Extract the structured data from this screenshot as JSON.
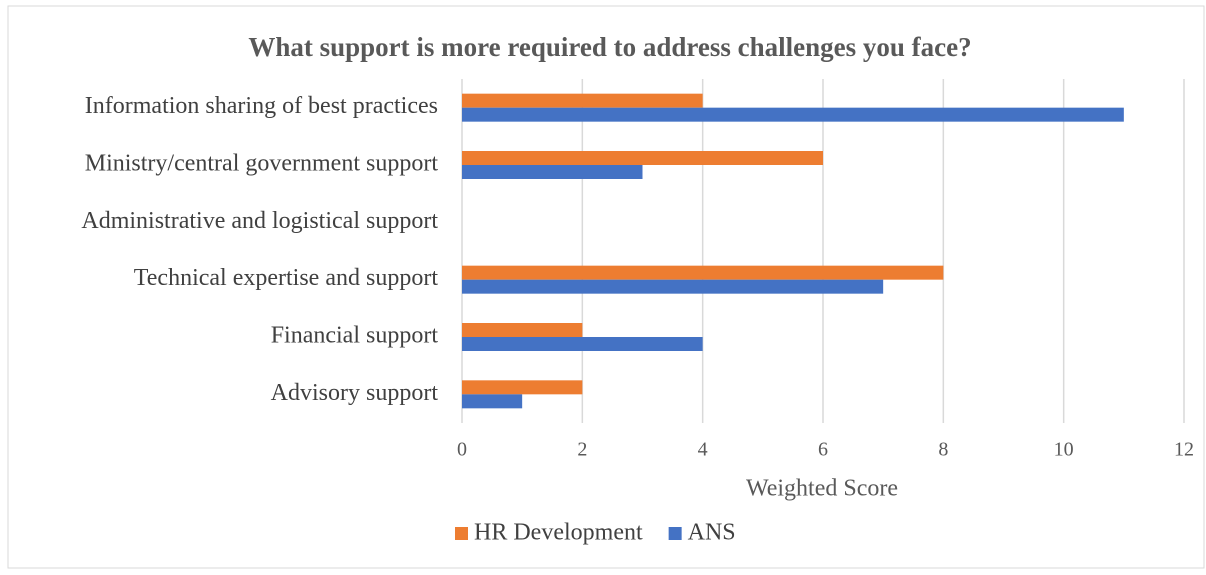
{
  "chart_data": {
    "type": "hbar",
    "title": "What support is more required to address challenges you face?",
    "categories": [
      "Information sharing of best practices",
      "Ministry/central government support",
      "Administrative and logistical support",
      "Technical expertise and support",
      "Financial support",
      "Advisory support"
    ],
    "series": [
      {
        "name": "HR Development",
        "color": "#ed7d31",
        "values": [
          4,
          6,
          0,
          8,
          2,
          2
        ]
      },
      {
        "name": "ANS",
        "color": "#4472c4",
        "values": [
          11,
          3,
          0,
          7,
          4,
          1
        ]
      }
    ],
    "xlabel": "Weighted Score",
    "xlim": [
      0,
      12
    ],
    "xticks": [
      0,
      2,
      4,
      6,
      8,
      10,
      12
    ],
    "grid": true,
    "legend": "bottom"
  }
}
